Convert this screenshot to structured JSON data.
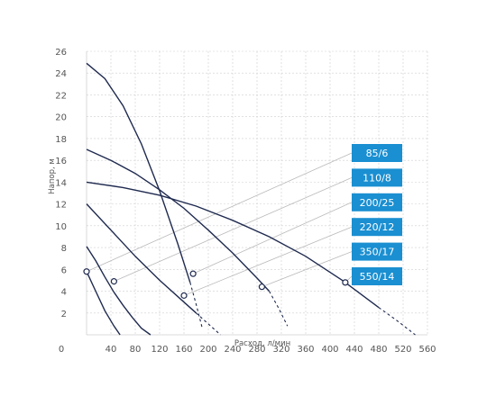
{
  "chart_data": {
    "type": "line",
    "xlabel": "Расход, л/мин",
    "ylabel": "Напор, м",
    "xlim": [
      0,
      560
    ],
    "ylim": [
      0,
      26
    ],
    "x_ticks": [
      "0",
      "40",
      "80",
      "120",
      "160",
      "200",
      "240",
      "280",
      "320",
      "360",
      "400",
      "440",
      "480",
      "520",
      "560"
    ],
    "y_ticks": [
      "2",
      "4",
      "6",
      "8",
      "10",
      "12",
      "14",
      "16",
      "18",
      "20",
      "22",
      "24",
      "26"
    ],
    "grid": true,
    "colors": {
      "curve": "#1f2a4f",
      "label_box": "#1a8fd1",
      "grid": "#cfcfcf"
    },
    "series": [
      {
        "name": "85/6",
        "x": [
          0,
          15,
          30,
          45,
          55
        ],
        "y": [
          5.8,
          4.0,
          2.2,
          0.8,
          0.0
        ],
        "extension": {
          "x": [],
          "y": []
        },
        "point": {
          "x": 0,
          "y": 5.8
        }
      },
      {
        "name": "110/8",
        "x": [
          0,
          15,
          30,
          45,
          60,
          75,
          90,
          105
        ],
        "y": [
          8.1,
          6.8,
          5.3,
          3.9,
          2.7,
          1.6,
          0.6,
          0.0
        ],
        "extension": {
          "x": [],
          "y": []
        },
        "point": {
          "x": 45,
          "y": 4.9
        }
      },
      {
        "name": "200/25",
        "x": [
          0,
          30,
          60,
          90,
          120,
          150,
          170
        ],
        "y": [
          24.9,
          23.5,
          21.0,
          17.5,
          13.2,
          8.3,
          4.8
        ],
        "extension": {
          "x": [
            170,
            180,
            190
          ],
          "y": [
            4.8,
            2.8,
            0.6
          ]
        },
        "point": {
          "x": 175,
          "y": 5.6
        }
      },
      {
        "name": "220/12",
        "x": [
          0,
          40,
          80,
          120,
          160,
          180
        ],
        "y": [
          12.0,
          9.6,
          7.2,
          5.0,
          3.0,
          2.0
        ],
        "extension": {
          "x": [
            180,
            200,
            220
          ],
          "y": [
            2.0,
            1.0,
            0.0
          ]
        },
        "point": {
          "x": 160,
          "y": 3.6
        }
      },
      {
        "name": "350/17",
        "x": [
          0,
          40,
          80,
          120,
          160,
          200,
          240,
          280,
          300
        ],
        "y": [
          17.0,
          16.0,
          14.8,
          13.3,
          11.6,
          9.6,
          7.5,
          5.2,
          4.0
        ],
        "extension": {
          "x": [
            300,
            315,
            330
          ],
          "y": [
            4.0,
            2.5,
            0.8
          ]
        },
        "point": {
          "x": 288,
          "y": 4.4
        }
      },
      {
        "name": "550/14",
        "x": [
          0,
          60,
          120,
          180,
          240,
          300,
          360,
          420,
          480
        ],
        "y": [
          14.0,
          13.5,
          12.8,
          11.8,
          10.5,
          9.0,
          7.2,
          5.0,
          2.5
        ],
        "extension": {
          "x": [
            480,
            510,
            540
          ],
          "y": [
            2.5,
            1.3,
            0.0
          ]
        },
        "point": {
          "x": 425,
          "y": 4.8
        }
      }
    ]
  }
}
